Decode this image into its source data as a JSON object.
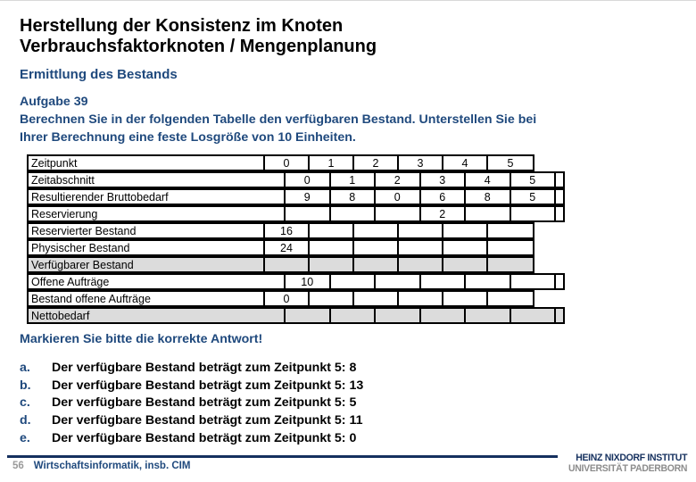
{
  "slide": {
    "title_line1": "Herstellung der Konsistenz im Knoten",
    "title_line2": "Verbrauchsfaktorknoten / Mengenplanung",
    "subtitle": "Ermittlung des Bestands"
  },
  "task": {
    "heading": "Aufgabe 39",
    "body_line1": "Berechnen Sie in der folgenden Tabelle den verfügbaren Bestand. Unterstellen Sie bei",
    "body_line2": "Ihrer Berechnung eine feste Losgröße von 10 Einheiten."
  },
  "table": {
    "rows": [
      {
        "label": "Zeitpunkt",
        "align": "point",
        "grey": false,
        "cells": [
          "0",
          "1",
          "2",
          "3",
          "4",
          "5"
        ]
      },
      {
        "label": "Zeitabschnitt",
        "align": "period",
        "grey": false,
        "cells": [
          "0",
          "1",
          "2",
          "3",
          "4",
          "5"
        ]
      },
      {
        "label": "Resultierender Bruttobedarf",
        "align": "period",
        "grey": false,
        "cells": [
          "9",
          "8",
          "0",
          "6",
          "8",
          "5"
        ]
      },
      {
        "label": "Reservierung",
        "align": "period",
        "grey": false,
        "cells": [
          "",
          "",
          "",
          "2",
          "",
          ""
        ]
      },
      {
        "label": "Reservierter Bestand",
        "align": "point",
        "grey": false,
        "cells": [
          "16",
          "",
          "",
          "",
          "",
          ""
        ]
      },
      {
        "label": "Physischer Bestand",
        "align": "point",
        "grey": false,
        "cells": [
          "24",
          "",
          "",
          "",
          "",
          ""
        ]
      },
      {
        "label": "Verfügbarer Bestand",
        "align": "point",
        "grey": true,
        "cells": [
          "",
          "",
          "",
          "",
          "",
          ""
        ]
      },
      {
        "label": "Offene Aufträge",
        "align": "period",
        "grey": false,
        "cells": [
          "10",
          "",
          "",
          "",
          "",
          ""
        ]
      },
      {
        "label": "Bestand offene Aufträge",
        "align": "point",
        "grey": false,
        "cells": [
          "0",
          "",
          "",
          "",
          "",
          ""
        ]
      },
      {
        "label": "Nettobedarf",
        "align": "period",
        "grey": true,
        "cells": [
          "",
          "",
          "",
          "",
          "",
          ""
        ]
      }
    ]
  },
  "question": {
    "prompt": "Markieren Sie bitte die korrekte Antwort!"
  },
  "answers": [
    {
      "letter": "a.",
      "text": "Der verfügbare Bestand beträgt zum Zeitpunkt 5: 8"
    },
    {
      "letter": "b.",
      "text": "Der verfügbare Bestand beträgt zum Zeitpunkt 5: 13"
    },
    {
      "letter": "c.",
      "text": "Der verfügbare Bestand beträgt zum Zeitpunkt 5: 5"
    },
    {
      "letter": "d.",
      "text": "Der verfügbare Bestand beträgt zum Zeitpunkt 5: 11"
    },
    {
      "letter": "e.",
      "text": "Der verfügbare Bestand beträgt zum Zeitpunkt 5: 0"
    }
  ],
  "footer": {
    "page_number": "56",
    "course": "Wirtschaftsinformatik, insb. CIM"
  },
  "logo": {
    "line1": "HEINZ NIXDORF INSTITUT",
    "line2": "UNIVERSITÄT PADERBORN"
  },
  "colors": {
    "navy_text": "#1F497D",
    "logo_navy": "#15305E",
    "cell_grey": "#DCDCDC",
    "page_number_grey": "#9A9A9A",
    "logo_grey": "#8C8C8C"
  }
}
